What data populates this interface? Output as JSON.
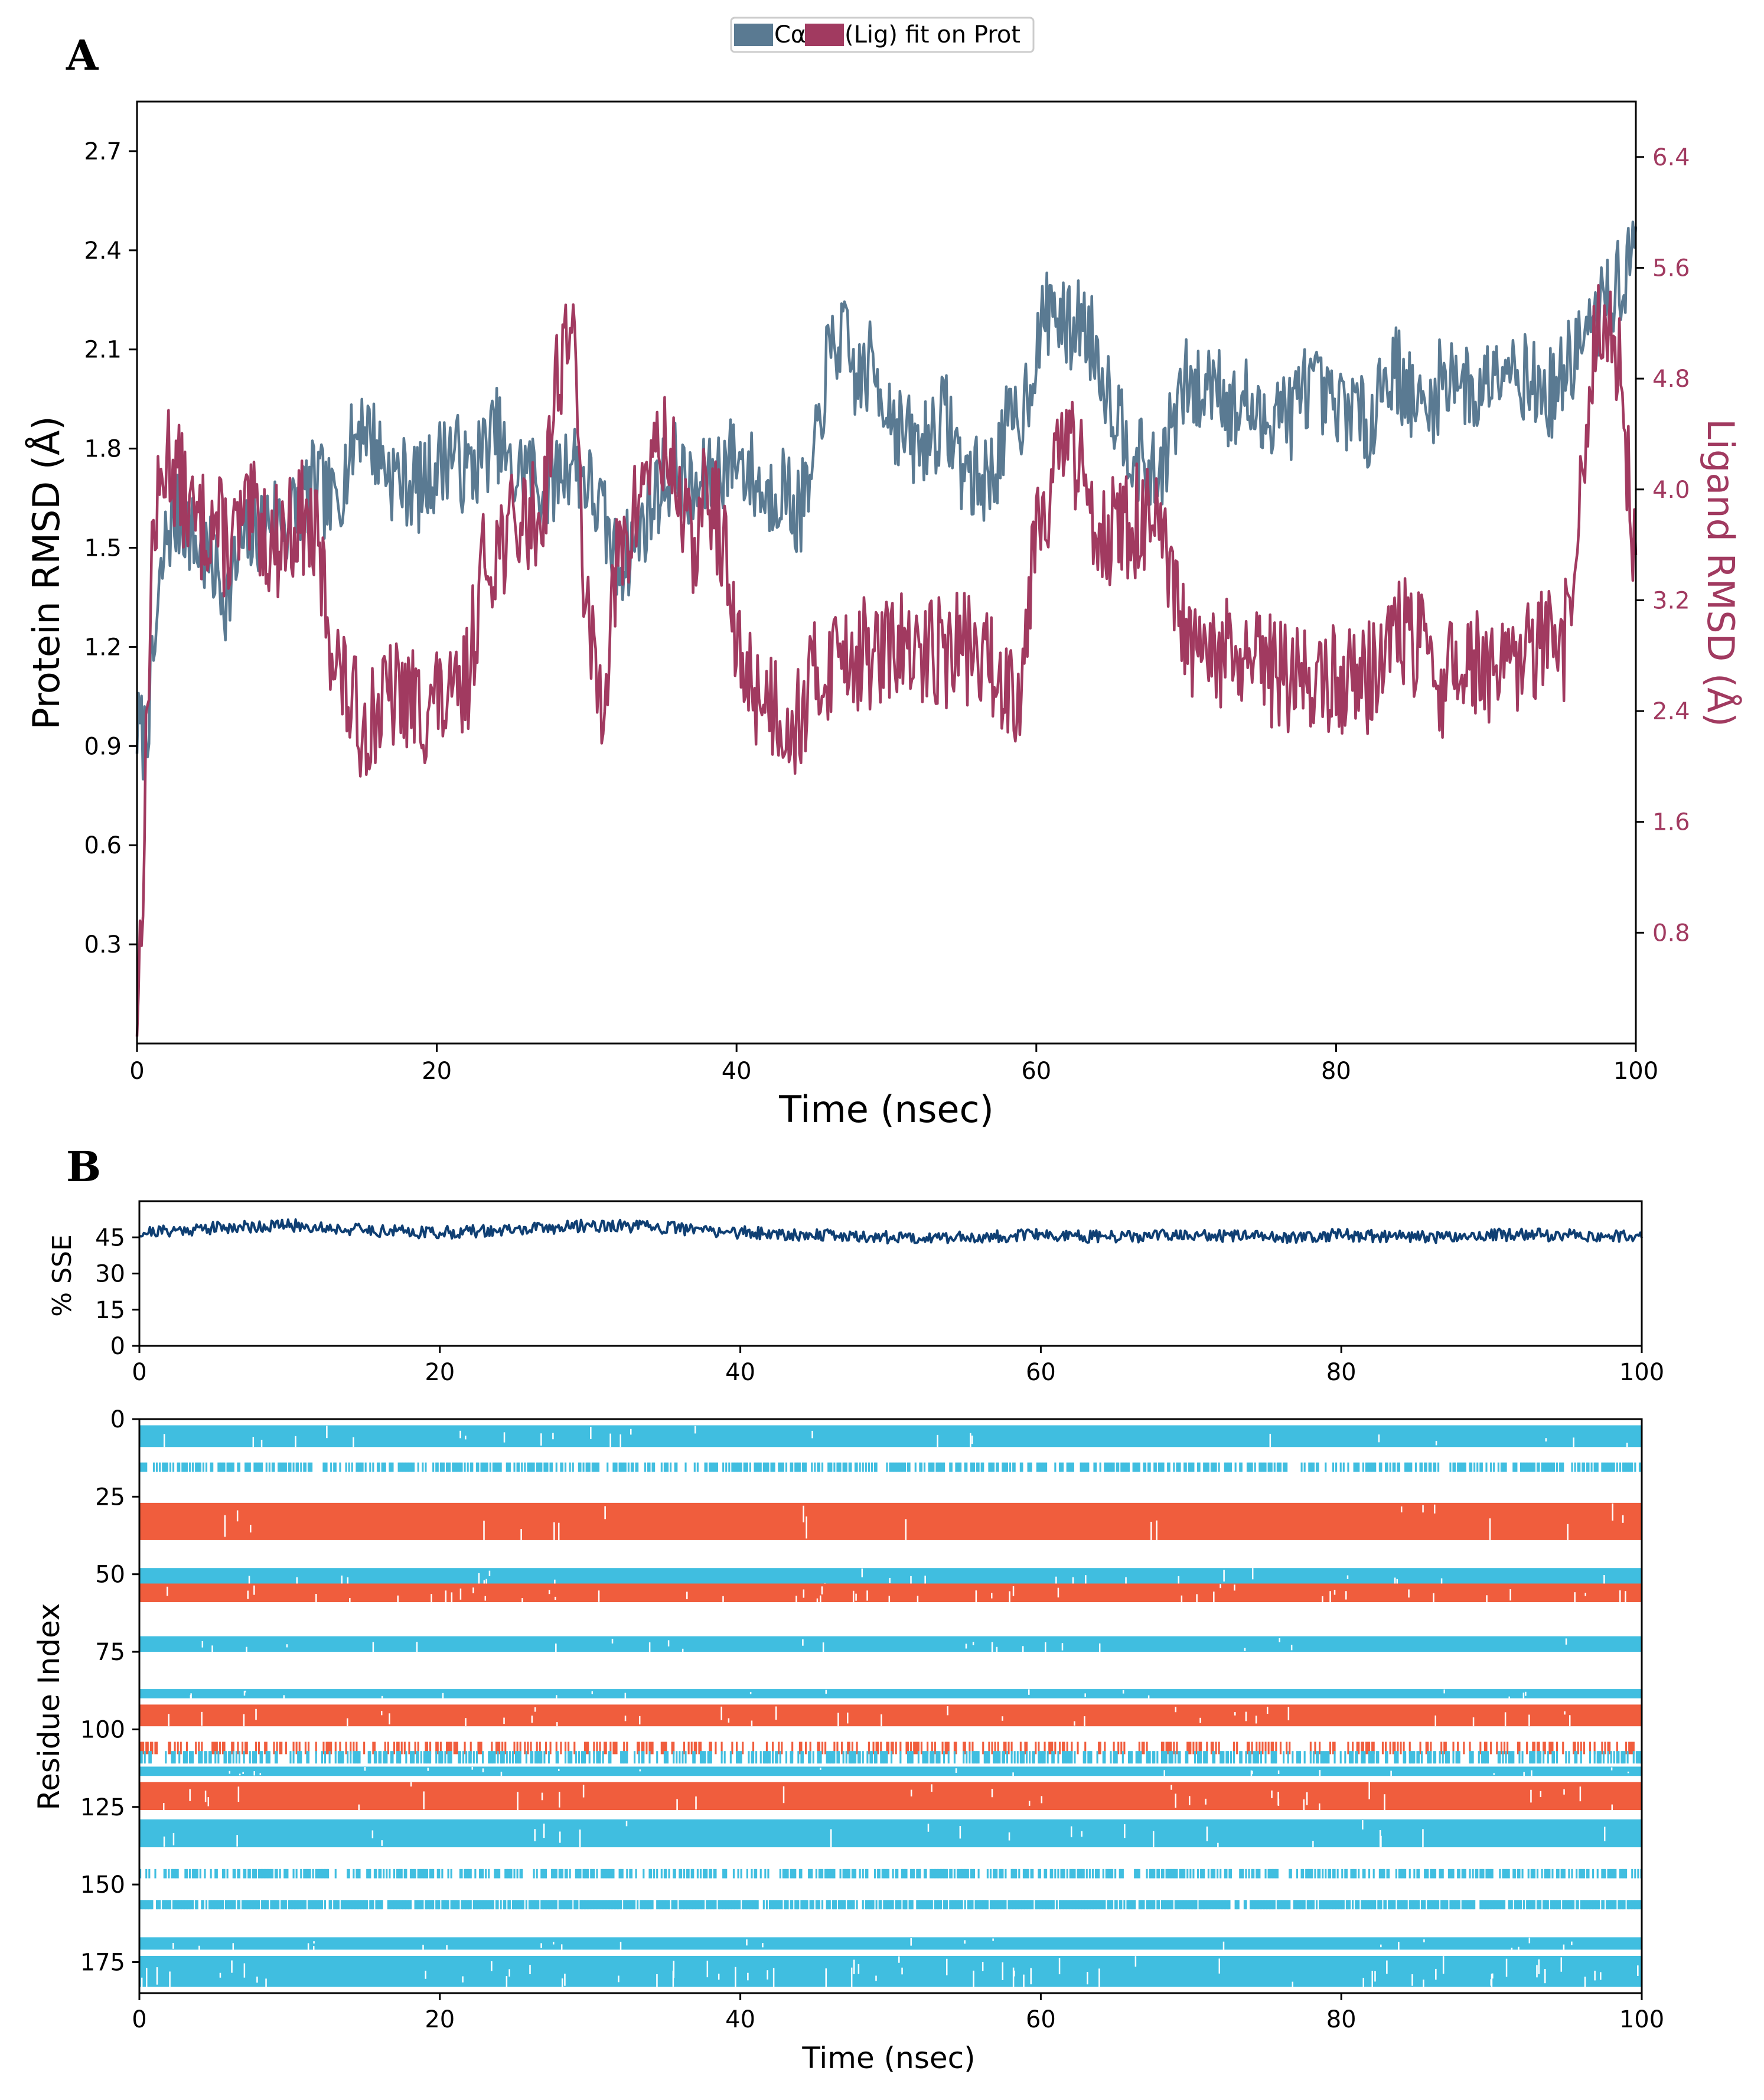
{
  "colors": {
    "protein": "#5a7a92",
    "ligand": "#a13a60",
    "sse_line": "#0f3f73",
    "helix": "#f05d3d",
    "strand": "#40bee0",
    "axis": "#000000"
  },
  "chart_data": [
    {
      "id": "A",
      "panel_label": "A",
      "type": "line",
      "legend": {
        "placement": "top-center",
        "entries": [
          "Cα",
          "(Lig) fit on Prot"
        ]
      },
      "xlabel": "Time (nsec)",
      "xlim": [
        0,
        100
      ],
      "xticks": [
        0,
        20,
        40,
        60,
        80,
        100
      ],
      "xtick_labels": [
        "0",
        "20",
        "40",
        "60",
        "80",
        "100"
      ],
      "y_left": {
        "label": "Protein RMSD (Å)",
        "lim": [
          0.0,
          2.85
        ],
        "ticks": [
          0.3,
          0.6,
          0.9,
          1.2,
          1.5,
          1.8,
          2.1,
          2.4,
          2.7
        ],
        "tick_labels": [
          "0.3",
          "0.6",
          "0.9",
          "1.2",
          "1.5",
          "1.8",
          "2.1",
          "2.4",
          "2.7"
        ]
      },
      "y_right": {
        "label": "Ligand RMSD (Å)",
        "lim": [
          0.0,
          6.8
        ],
        "ticks": [
          0.8,
          1.6,
          2.4,
          3.2,
          4.0,
          4.8,
          5.6,
          6.4
        ],
        "tick_labels": [
          "0.8",
          "1.6",
          "2.4",
          "3.2",
          "4.0",
          "4.8",
          "5.6",
          "6.4"
        ]
      },
      "series": [
        {
          "name": "Cα",
          "axis": "left",
          "x": [
            0,
            0.5,
            1,
            1.5,
            2,
            3,
            4,
            5,
            6,
            7,
            8,
            9,
            10,
            11,
            12,
            13,
            14,
            15,
            16,
            17,
            18,
            19,
            20,
            21,
            22,
            23,
            24,
            25,
            26,
            27,
            28,
            29,
            30,
            31,
            32,
            33,
            34,
            35,
            36,
            37,
            38,
            39,
            40,
            41,
            42,
            43,
            44,
            45,
            46,
            47,
            48,
            49,
            50,
            51,
            52,
            53,
            54,
            55,
            56,
            57,
            58,
            59,
            60,
            61,
            62,
            63,
            64,
            65,
            66,
            67,
            68,
            69,
            70,
            71,
            72,
            73,
            74,
            75,
            76,
            77,
            78,
            79,
            80,
            81,
            82,
            83,
            84,
            85,
            86,
            87,
            88,
            89,
            90,
            91,
            92,
            93,
            94,
            95,
            96,
            97,
            98,
            99,
            100
          ],
          "y": [
            0.95,
            0.92,
            1.1,
            1.35,
            1.55,
            1.6,
            1.5,
            1.45,
            1.35,
            1.5,
            1.55,
            1.6,
            1.58,
            1.65,
            1.7,
            1.62,
            1.75,
            1.9,
            1.8,
            1.72,
            1.7,
            1.68,
            1.75,
            1.8,
            1.72,
            1.78,
            1.85,
            1.7,
            1.75,
            1.68,
            1.72,
            1.78,
            1.7,
            1.6,
            1.45,
            1.5,
            1.6,
            1.7,
            1.75,
            1.65,
            1.7,
            1.75,
            1.78,
            1.72,
            1.65,
            1.7,
            1.6,
            1.68,
            2.05,
            2.15,
            2.0,
            2.05,
            1.95,
            1.85,
            1.8,
            1.85,
            1.9,
            1.75,
            1.7,
            1.72,
            1.85,
            1.9,
            2.1,
            2.25,
            2.15,
            2.2,
            2.1,
            1.95,
            1.85,
            1.75,
            1.7,
            1.85,
            2.0,
            1.95,
            2.05,
            1.9,
            1.95,
            1.85,
            1.95,
            1.9,
            2.0,
            1.95,
            1.9,
            1.95,
            1.85,
            2.0,
            2.05,
            1.95,
            1.9,
            2.0,
            2.05,
            1.95,
            2.0,
            2.1,
            2.05,
            2.0,
            1.95,
            2.0,
            2.1,
            2.15,
            2.25,
            2.3,
            2.4
          ]
        },
        {
          "name": "(Lig) fit on Prot",
          "axis": "right",
          "x": [
            0,
            0.5,
            1,
            1.5,
            2,
            3,
            4,
            5,
            6,
            7,
            8,
            9,
            10,
            11,
            12,
            13,
            14,
            15,
            16,
            17,
            18,
            19,
            20,
            21,
            22,
            23,
            24,
            25,
            26,
            27,
            28,
            29,
            30,
            31,
            32,
            33,
            34,
            35,
            36,
            37,
            38,
            39,
            40,
            41,
            42,
            43,
            44,
            45,
            46,
            47,
            48,
            49,
            50,
            51,
            52,
            53,
            54,
            55,
            56,
            57,
            58,
            59,
            60,
            61,
            62,
            63,
            64,
            65,
            66,
            67,
            68,
            69,
            70,
            71,
            72,
            73,
            74,
            75,
            76,
            77,
            78,
            79,
            80,
            81,
            82,
            83,
            84,
            85,
            86,
            87,
            88,
            89,
            90,
            91,
            92,
            93,
            94,
            95,
            96,
            97,
            98,
            99,
            100
          ],
          "y": [
            0.1,
            1.6,
            3.6,
            3.9,
            4.3,
            4.0,
            3.7,
            3.8,
            3.6,
            3.7,
            3.8,
            3.6,
            3.7,
            3.8,
            3.6,
            2.9,
            2.5,
            2.3,
            2.4,
            2.5,
            2.5,
            2.4,
            2.5,
            2.4,
            2.6,
            3.4,
            3.6,
            3.7,
            3.8,
            3.8,
            4.8,
            5.3,
            3.0,
            2.5,
            3.4,
            3.7,
            4.2,
            4.3,
            4.1,
            3.5,
            4.0,
            3.7,
            2.8,
            2.6,
            2.5,
            2.4,
            2.3,
            2.6,
            2.7,
            2.9,
            2.8,
            2.8,
            2.8,
            2.9,
            2.7,
            2.9,
            2.8,
            2.9,
            2.8,
            2.7,
            2.6,
            2.6,
            3.9,
            4.0,
            4.4,
            4.1,
            3.8,
            3.7,
            3.7,
            3.8,
            3.7,
            3.3,
            2.9,
            2.7,
            2.8,
            2.8,
            2.7,
            2.7,
            2.7,
            2.6,
            2.7,
            2.6,
            2.6,
            2.7,
            2.6,
            2.8,
            3.0,
            2.9,
            2.8,
            2.6,
            2.7,
            2.8,
            2.7,
            2.6,
            2.7,
            2.8,
            2.9,
            2.7,
            3.5,
            4.8,
            5.4,
            4.8,
            3.3
          ]
        }
      ]
    },
    {
      "id": "B-top",
      "panel_label": "B",
      "type": "line",
      "ylabel": "% SSE",
      "xlabel": "",
      "xlim": [
        0,
        100
      ],
      "xticks": [
        0,
        20,
        40,
        60,
        80,
        100
      ],
      "xtick_labels": [
        "0",
        "20",
        "40",
        "60",
        "80",
        "100"
      ],
      "ylim": [
        0,
        60
      ],
      "yticks": [
        0,
        15,
        30,
        45
      ],
      "ytick_labels": [
        "0",
        "15",
        "30",
        "45"
      ],
      "series": [
        {
          "name": "% SSE",
          "x": [
            0,
            5,
            10,
            15,
            20,
            25,
            30,
            35,
            40,
            45,
            50,
            55,
            60,
            65,
            70,
            75,
            80,
            85,
            90,
            95,
            100
          ],
          "y": [
            47,
            49,
            50,
            48,
            47,
            48,
            50,
            49,
            47,
            46,
            45,
            45,
            46,
            45,
            46,
            45,
            46,
            45,
            46,
            46,
            45
          ]
        }
      ]
    },
    {
      "id": "B-bottom",
      "type": "heatmap",
      "xlabel": "Time (nsec)",
      "ylabel": "Residue Index",
      "xlim": [
        0,
        100
      ],
      "xticks": [
        0,
        20,
        40,
        60,
        80,
        100
      ],
      "xtick_labels": [
        "0",
        "20",
        "40",
        "60",
        "80",
        "100"
      ],
      "ylim": [
        0,
        185
      ],
      "yticks": [
        0,
        25,
        50,
        75,
        100,
        125,
        150,
        175
      ],
      "ytick_labels": [
        "0",
        "25",
        "50",
        "75",
        "100",
        "125",
        "150",
        "175"
      ],
      "bands": [
        {
          "kind": "strand",
          "r0": 2,
          "r1": 9,
          "density": 0.99
        },
        {
          "kind": "strand",
          "r0": 14,
          "r1": 17,
          "density": 0.6
        },
        {
          "kind": "helix",
          "r0": 27,
          "r1": 39,
          "density": 1.0
        },
        {
          "kind": "strand",
          "r0": 48,
          "r1": 54,
          "density": 0.99
        },
        {
          "kind": "helix",
          "r0": 53,
          "r1": 59,
          "density": 0.95
        },
        {
          "kind": "strand",
          "r0": 70,
          "r1": 75,
          "density": 0.99
        },
        {
          "kind": "strand",
          "r0": 87,
          "r1": 90,
          "density": 1.0
        },
        {
          "kind": "helix",
          "r0": 92,
          "r1": 99,
          "density": 0.97
        },
        {
          "kind": "helix",
          "r0": 104,
          "r1": 108,
          "density": 0.35
        },
        {
          "kind": "strand",
          "r0": 107,
          "r1": 111,
          "density": 0.5
        },
        {
          "kind": "strand",
          "r0": 112,
          "r1": 115,
          "density": 0.99
        },
        {
          "kind": "helix",
          "r0": 117,
          "r1": 126,
          "density": 0.97
        },
        {
          "kind": "strand",
          "r0": 129,
          "r1": 138,
          "density": 0.99
        },
        {
          "kind": "strand",
          "r0": 145,
          "r1": 148,
          "density": 0.55
        },
        {
          "kind": "strand",
          "r0": 155,
          "r1": 158,
          "density": 0.85
        },
        {
          "kind": "strand",
          "r0": 167,
          "r1": 171,
          "density": 0.99
        },
        {
          "kind": "strand",
          "r0": 173,
          "r1": 183,
          "density": 0.92
        }
      ]
    }
  ]
}
